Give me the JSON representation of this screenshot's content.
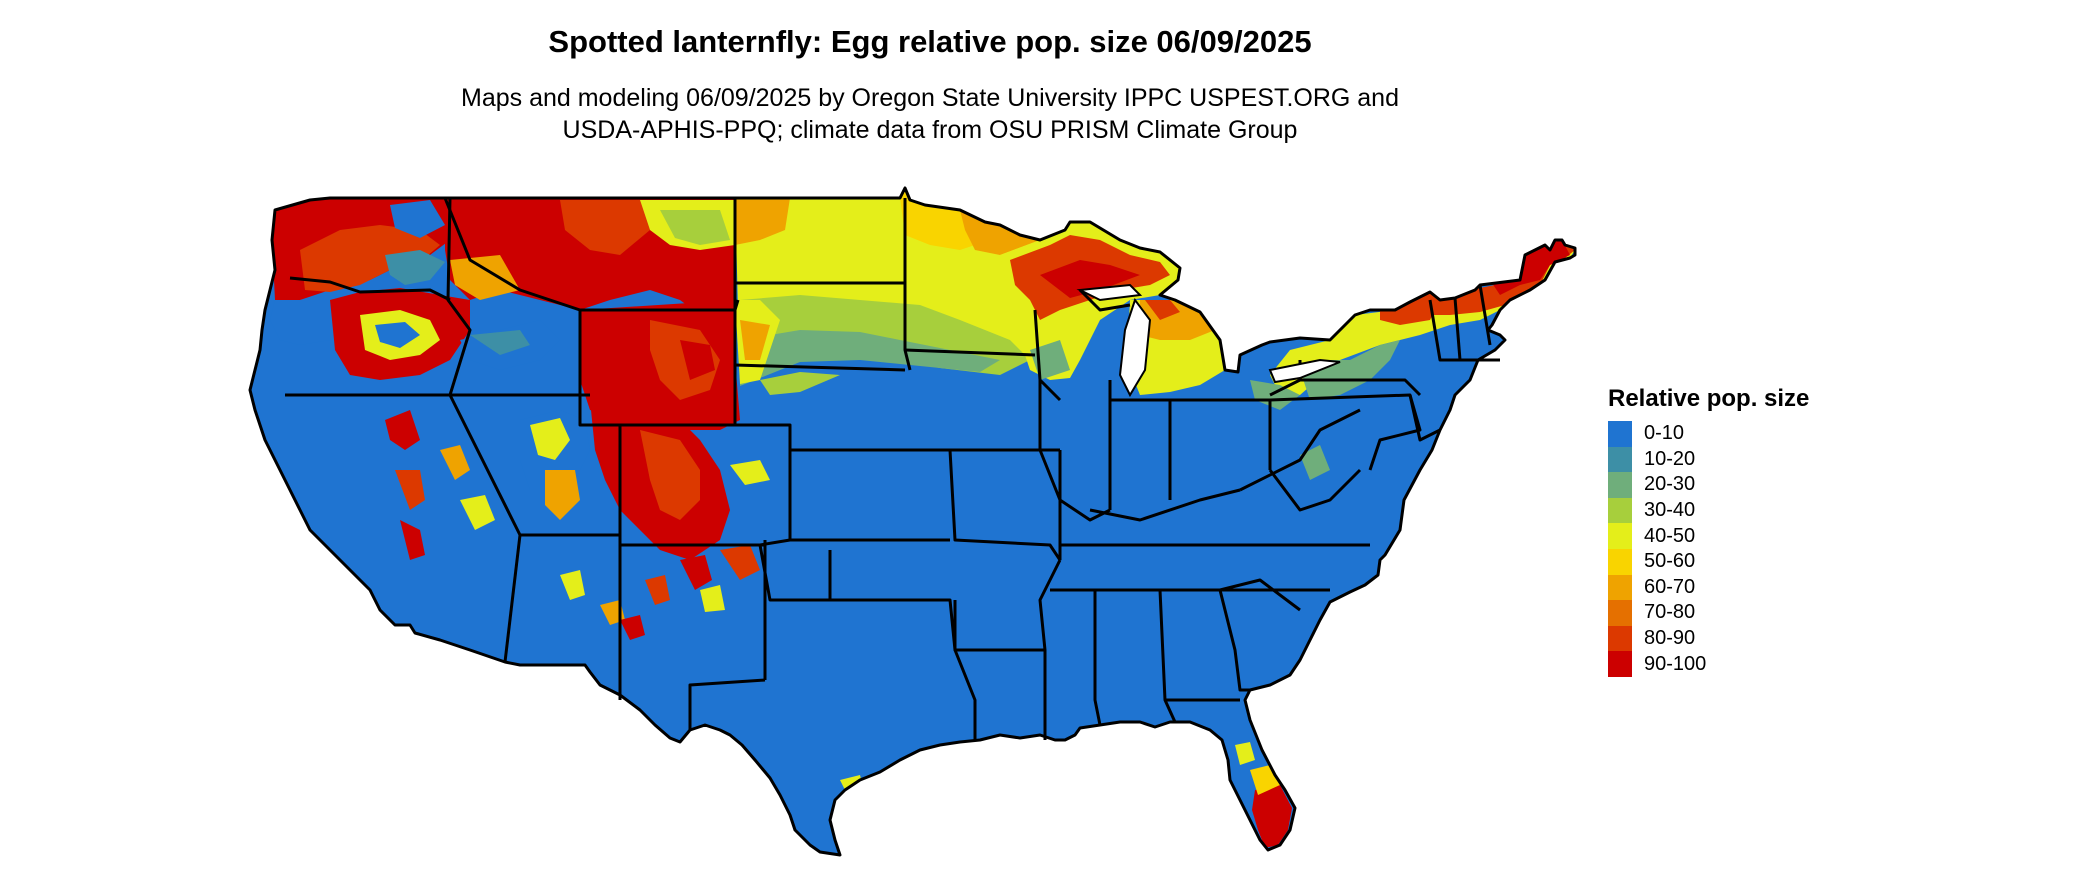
{
  "title": "Spotted lanternfly: Egg relative pop. size 06/09/2025",
  "subtitle": {
    "line1": "Maps and modeling 06/09/2025 by Oregon State University IPPC USPEST.ORG and",
    "line2": "USDA-APHIS-PPQ; climate data from OSU PRISM Climate Group"
  },
  "legend": {
    "title": "Relative pop. size",
    "items": [
      {
        "label": "0-10",
        "color": "#1f74d1"
      },
      {
        "label": "10-20",
        "color": "#3d8fa6"
      },
      {
        "label": "20-30",
        "color": "#6fae7b"
      },
      {
        "label": "30-40",
        "color": "#a7cf3c"
      },
      {
        "label": "40-50",
        "color": "#e4ee1a"
      },
      {
        "label": "50-60",
        "color": "#f9d400"
      },
      {
        "label": "60-70",
        "color": "#efa300"
      },
      {
        "label": "70-80",
        "color": "#e57000"
      },
      {
        "label": "80-90",
        "color": "#dc3900"
      },
      {
        "label": "90-100",
        "color": "#cc0000"
      }
    ]
  }
}
